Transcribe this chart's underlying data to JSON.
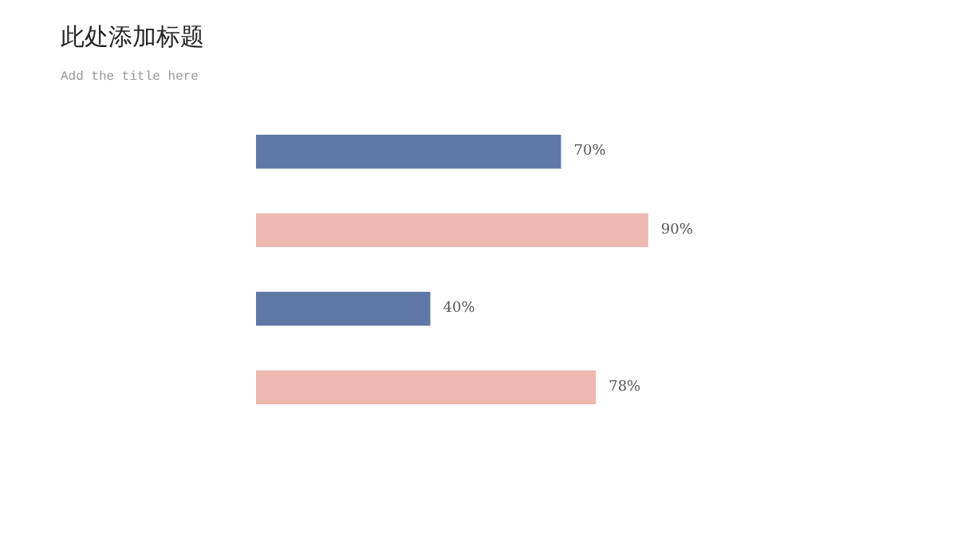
{
  "chart_data": {
    "type": "bar",
    "orientation": "horizontal",
    "title": "此处添加标题",
    "subtitle": "Add the title here",
    "categories": [
      null,
      null,
      null,
      null
    ],
    "values": [
      70,
      90,
      40,
      78
    ],
    "colors": [
      "#6078a6",
      "#ecb8b0",
      "#6078a6",
      "#ecb8b0"
    ],
    "value_labels": [
      "70%",
      "90%",
      "40%",
      "78%"
    ],
    "grid": false
  }
}
